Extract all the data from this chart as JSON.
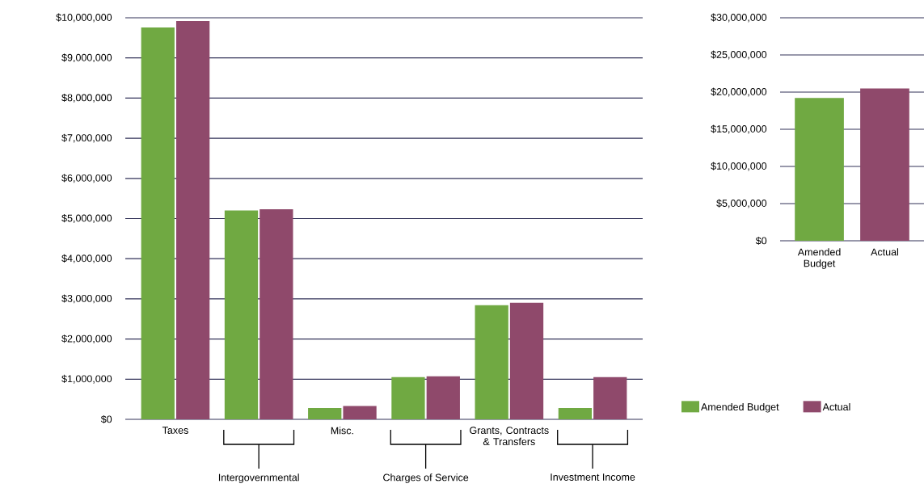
{
  "chart_data": [
    {
      "type": "bar",
      "categories": [
        "Taxes",
        "Intergovernmental",
        "Misc.",
        "Charges of Service",
        "Grants, Contracts & Transfers",
        "Investment Income"
      ],
      "series": [
        {
          "name": "Amended Budget",
          "color": "#70a942",
          "values": [
            9760000,
            5200000,
            280000,
            1050000,
            2840000,
            280000
          ]
        },
        {
          "name": "Actual",
          "color": "#8f496b",
          "values": [
            9920000,
            5230000,
            330000,
            1070000,
            2900000,
            1050000
          ]
        }
      ],
      "ylim": [
        0,
        10000000
      ],
      "yticks": [
        {
          "value": 0,
          "label": "$0"
        },
        {
          "value": 1000000,
          "label": "$1,000,000"
        },
        {
          "value": 2000000,
          "label": "$2,000,000"
        },
        {
          "value": 3000000,
          "label": "$3,000,000"
        },
        {
          "value": 4000000,
          "label": "$4,000,000"
        },
        {
          "value": 5000000,
          "label": "$5,000,000"
        },
        {
          "value": 6000000,
          "label": "$6,000,000"
        },
        {
          "value": 7000000,
          "label": "$7,000,000"
        },
        {
          "value": 8000000,
          "label": "$8,000,000"
        },
        {
          "value": 9000000,
          "label": "$9,000,000"
        },
        {
          "value": 10000000,
          "label": "$10,000,000"
        }
      ],
      "grid": "y",
      "legend": "bottom right"
    },
    {
      "type": "bar",
      "categories": [
        "Amended Budget",
        "Actual"
      ],
      "values": [
        19200000,
        20500000
      ],
      "colors": [
        "#70a942",
        "#8f496b"
      ],
      "ylim": [
        0,
        30000000
      ],
      "yticks": [
        {
          "value": 0,
          "label": "$0"
        },
        {
          "value": 5000000,
          "label": "$5,000,000"
        },
        {
          "value": 10000000,
          "label": "$10,000,000"
        },
        {
          "value": 15000000,
          "label": "$15,000,000"
        },
        {
          "value": 20000000,
          "label": "$20,000,000"
        },
        {
          "value": 25000000,
          "label": "$25,000,000"
        },
        {
          "value": 30000000,
          "label": "$30,000,000"
        }
      ],
      "grid": "y"
    }
  ]
}
